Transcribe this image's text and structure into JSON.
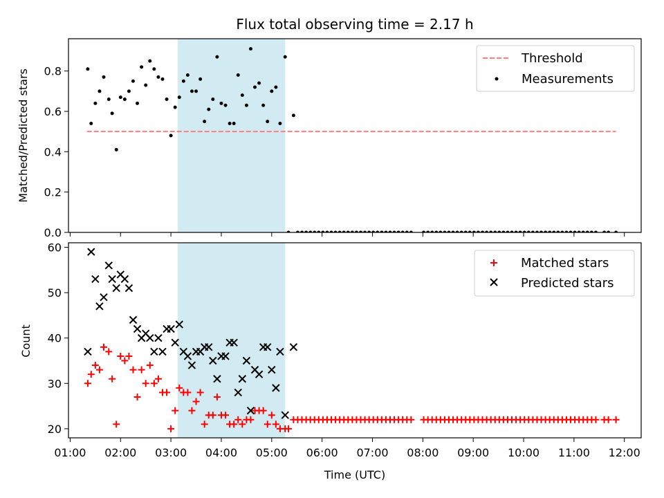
{
  "colors": {
    "threshold": "#ff7f7f",
    "measurement": "#000000",
    "matched": "#ff0000",
    "predicted": "#000000",
    "observing_band": "#add8e6"
  },
  "chart_data": [
    {
      "type": "scatter",
      "title": "Flux total observing time = 2.17 h",
      "xlabel": "",
      "ylabel": "Matched/Predicted stars",
      "xlim": [
        "00:58",
        "12:20"
      ],
      "ylim": [
        0,
        0.96
      ],
      "yticks": [
        "0.0",
        "0.2",
        "0.4",
        "0.6",
        "0.8"
      ],
      "shaded_span": [
        "03:08",
        "05:16"
      ],
      "legend": {
        "position": "top-right",
        "entries": [
          "Threshold",
          "Measurements"
        ]
      },
      "threshold": {
        "name": "Threshold",
        "y": 0.5,
        "x": [
          "01:20",
          "11:50"
        ]
      },
      "series": [
        {
          "name": "Measurements",
          "x": [
            "01:21",
            "01:25",
            "01:30",
            "01:35",
            "01:40",
            "01:46",
            "01:50",
            "01:55",
            "02:00",
            "02:05",
            "02:10",
            "02:15",
            "02:20",
            "02:25",
            "02:30",
            "02:35",
            "02:40",
            "02:45",
            "02:50",
            "02:55",
            "03:00",
            "03:05",
            "03:10",
            "03:15",
            "03:20",
            "03:25",
            "03:30",
            "03:35",
            "03:40",
            "03:45",
            "03:50",
            "03:55",
            "04:00",
            "04:05",
            "04:10",
            "04:15",
            "04:20",
            "04:25",
            "04:30",
            "04:35",
            "04:40",
            "04:45",
            "04:50",
            "04:55",
            "05:00",
            "05:05",
            "05:10",
            "05:16",
            "05:20",
            "05:26",
            "05:31",
            "05:36",
            "05:41",
            "05:46",
            "05:51",
            "05:56",
            "06:01",
            "06:06",
            "06:11",
            "06:16",
            "06:21",
            "06:26",
            "06:31",
            "06:36",
            "06:41",
            "06:46",
            "06:51",
            "06:56",
            "07:01",
            "07:06",
            "07:11",
            "07:16",
            "07:21",
            "07:26",
            "07:31",
            "07:36",
            "07:41",
            "07:46",
            "08:01",
            "08:06",
            "08:11",
            "08:16",
            "08:21",
            "08:26",
            "08:31",
            "08:36",
            "08:41",
            "08:46",
            "08:51",
            "08:56",
            "09:01",
            "09:06",
            "09:11",
            "09:16",
            "09:21",
            "09:26",
            "09:31",
            "09:36",
            "09:41",
            "09:46",
            "09:51",
            "09:56",
            "10:01",
            "10:06",
            "10:11",
            "10:16",
            "10:21",
            "10:26",
            "10:31",
            "10:36",
            "10:41",
            "10:46",
            "10:51",
            "10:56",
            "11:01",
            "11:06",
            "11:11",
            "11:16",
            "11:21",
            "11:26",
            "11:36",
            "11:41",
            "11:50"
          ],
          "y": [
            0.81,
            0.54,
            0.64,
            0.7,
            0.77,
            0.66,
            0.59,
            0.41,
            0.67,
            0.66,
            0.7,
            0.75,
            0.64,
            0.82,
            0.73,
            0.85,
            0.81,
            0.77,
            0.76,
            0.66,
            0.48,
            0.62,
            0.67,
            0.75,
            0.78,
            0.7,
            0.7,
            0.76,
            0.55,
            0.61,
            0.66,
            0.87,
            0.64,
            0.63,
            0.54,
            0.54,
            0.78,
            0.68,
            0.63,
            0.91,
            0.72,
            0.74,
            0.63,
            0.55,
            0.7,
            0.72,
            0.54,
            0.87,
            0.0,
            0.58,
            0.0,
            0.0,
            0.0,
            0.0,
            0.0,
            0.0,
            0.0,
            0.0,
            0.0,
            0.0,
            0.0,
            0.0,
            0.0,
            0.0,
            0.0,
            0.0,
            0.0,
            0.0,
            0.0,
            0.0,
            0.0,
            0.0,
            0.0,
            0.0,
            0.0,
            0.0,
            0.0,
            0.0,
            0.0,
            0.0,
            0.0,
            0.0,
            0.0,
            0.0,
            0.0,
            0.0,
            0.0,
            0.0,
            0.0,
            0.0,
            0.0,
            0.0,
            0.0,
            0.0,
            0.0,
            0.0,
            0.0,
            0.0,
            0.0,
            0.0,
            0.0,
            0.0,
            0.0,
            0.0,
            0.0,
            0.0,
            0.0,
            0.0,
            0.0,
            0.0,
            0.0,
            0.0,
            0.0,
            0.0,
            0.0,
            0.0,
            0.0,
            0.0,
            0.0,
            0.0,
            0.0,
            0.0,
            0.0
          ]
        }
      ]
    },
    {
      "type": "scatter",
      "title": "",
      "xlabel": "Time (UTC)",
      "ylabel": "Count",
      "xlim": [
        "00:58",
        "12:20"
      ],
      "ylim": [
        18,
        61
      ],
      "yticks": [
        "20",
        "30",
        "40",
        "50",
        "60"
      ],
      "xticks": [
        "01:00",
        "02:00",
        "03:00",
        "04:00",
        "05:00",
        "06:00",
        "07:00",
        "08:00",
        "09:00",
        "10:00",
        "11:00",
        "12:00"
      ],
      "shaded_span": [
        "03:08",
        "05:16"
      ],
      "legend": {
        "position": "top-right",
        "entries": [
          "Matched stars",
          "Predicted stars"
        ]
      },
      "series": [
        {
          "name": "Matched stars",
          "marker": "+",
          "x": [
            "01:21",
            "01:25",
            "01:30",
            "01:35",
            "01:40",
            "01:46",
            "01:50",
            "01:55",
            "02:00",
            "02:05",
            "02:10",
            "02:15",
            "02:20",
            "02:25",
            "02:30",
            "02:35",
            "02:40",
            "02:45",
            "02:50",
            "02:55",
            "03:00",
            "03:05",
            "03:10",
            "03:15",
            "03:20",
            "03:25",
            "03:30",
            "03:35",
            "03:40",
            "03:45",
            "03:50",
            "03:55",
            "04:00",
            "04:05",
            "04:10",
            "04:15",
            "04:20",
            "04:25",
            "04:30",
            "04:35",
            "04:40",
            "04:45",
            "04:50",
            "04:55",
            "05:00",
            "05:05",
            "05:10",
            "05:16",
            "05:20",
            "05:26",
            "05:31",
            "05:36",
            "05:41",
            "05:46",
            "05:51",
            "05:56",
            "06:01",
            "06:06",
            "06:11",
            "06:16",
            "06:21",
            "06:26",
            "06:31",
            "06:36",
            "06:41",
            "06:46",
            "06:51",
            "06:56",
            "07:01",
            "07:06",
            "07:11",
            "07:16",
            "07:21",
            "07:26",
            "07:31",
            "07:36",
            "07:41",
            "07:46",
            "08:01",
            "08:06",
            "08:11",
            "08:16",
            "08:21",
            "08:26",
            "08:31",
            "08:36",
            "08:41",
            "08:46",
            "08:51",
            "08:56",
            "09:01",
            "09:06",
            "09:11",
            "09:16",
            "09:21",
            "09:26",
            "09:31",
            "09:36",
            "09:41",
            "09:46",
            "09:51",
            "09:56",
            "10:01",
            "10:06",
            "10:11",
            "10:16",
            "10:21",
            "10:26",
            "10:31",
            "10:36",
            "10:41",
            "10:46",
            "10:51",
            "10:56",
            "11:01",
            "11:06",
            "11:11",
            "11:16",
            "11:21",
            "11:26",
            "11:36",
            "11:41",
            "11:50"
          ],
          "y": [
            30,
            32,
            34,
            33,
            38,
            37,
            31,
            21,
            36,
            35,
            36,
            33,
            27,
            33,
            30,
            34,
            30,
            31,
            28,
            28,
            20,
            24,
            29,
            28,
            28,
            24,
            26,
            28,
            21,
            23,
            23,
            27,
            23,
            23,
            21,
            21,
            22,
            21,
            22,
            22,
            24,
            24,
            24,
            21,
            23,
            21,
            20,
            20,
            20,
            22,
            22,
            22,
            22,
            22,
            22,
            22,
            22,
            22,
            22,
            22,
            22,
            22,
            22,
            22,
            22,
            22,
            22,
            22,
            22,
            22,
            22,
            22,
            22,
            22,
            22,
            22,
            22,
            22,
            22,
            22,
            22,
            22,
            22,
            22,
            22,
            22,
            22,
            22,
            22,
            22,
            22,
            22,
            22,
            22,
            22,
            22,
            22,
            22,
            22,
            22,
            22,
            22,
            22,
            22,
            22,
            22,
            22,
            22,
            22,
            22,
            22,
            22,
            22,
            22,
            22,
            22,
            22,
            22,
            22,
            22,
            22,
            22,
            22
          ]
        },
        {
          "name": "Predicted stars",
          "marker": "x",
          "x": [
            "01:21",
            "01:25",
            "01:30",
            "01:35",
            "01:40",
            "01:46",
            "01:50",
            "01:55",
            "02:00",
            "02:05",
            "02:10",
            "02:15",
            "02:20",
            "02:25",
            "02:30",
            "02:35",
            "02:40",
            "02:45",
            "02:50",
            "02:55",
            "03:00",
            "03:05",
            "03:10",
            "03:15",
            "03:20",
            "03:25",
            "03:30",
            "03:35",
            "03:40",
            "03:45",
            "03:50",
            "03:55",
            "04:00",
            "04:05",
            "04:10",
            "04:15",
            "04:20",
            "04:25",
            "04:30",
            "04:35",
            "04:40",
            "04:45",
            "04:50",
            "04:55",
            "05:00",
            "05:05",
            "05:10",
            "05:16",
            "05:26"
          ],
          "y": [
            37,
            59,
            53,
            47,
            49,
            56,
            53,
            51,
            54,
            53,
            51,
            44,
            42,
            40,
            41,
            40,
            37,
            40,
            37,
            42,
            42,
            39,
            43,
            37,
            36,
            34,
            37,
            37,
            38,
            38,
            35,
            31,
            36,
            36,
            39,
            39,
            28,
            31,
            35,
            24,
            33,
            32,
            38,
            38,
            33,
            29,
            37,
            23,
            38
          ]
        }
      ]
    }
  ]
}
